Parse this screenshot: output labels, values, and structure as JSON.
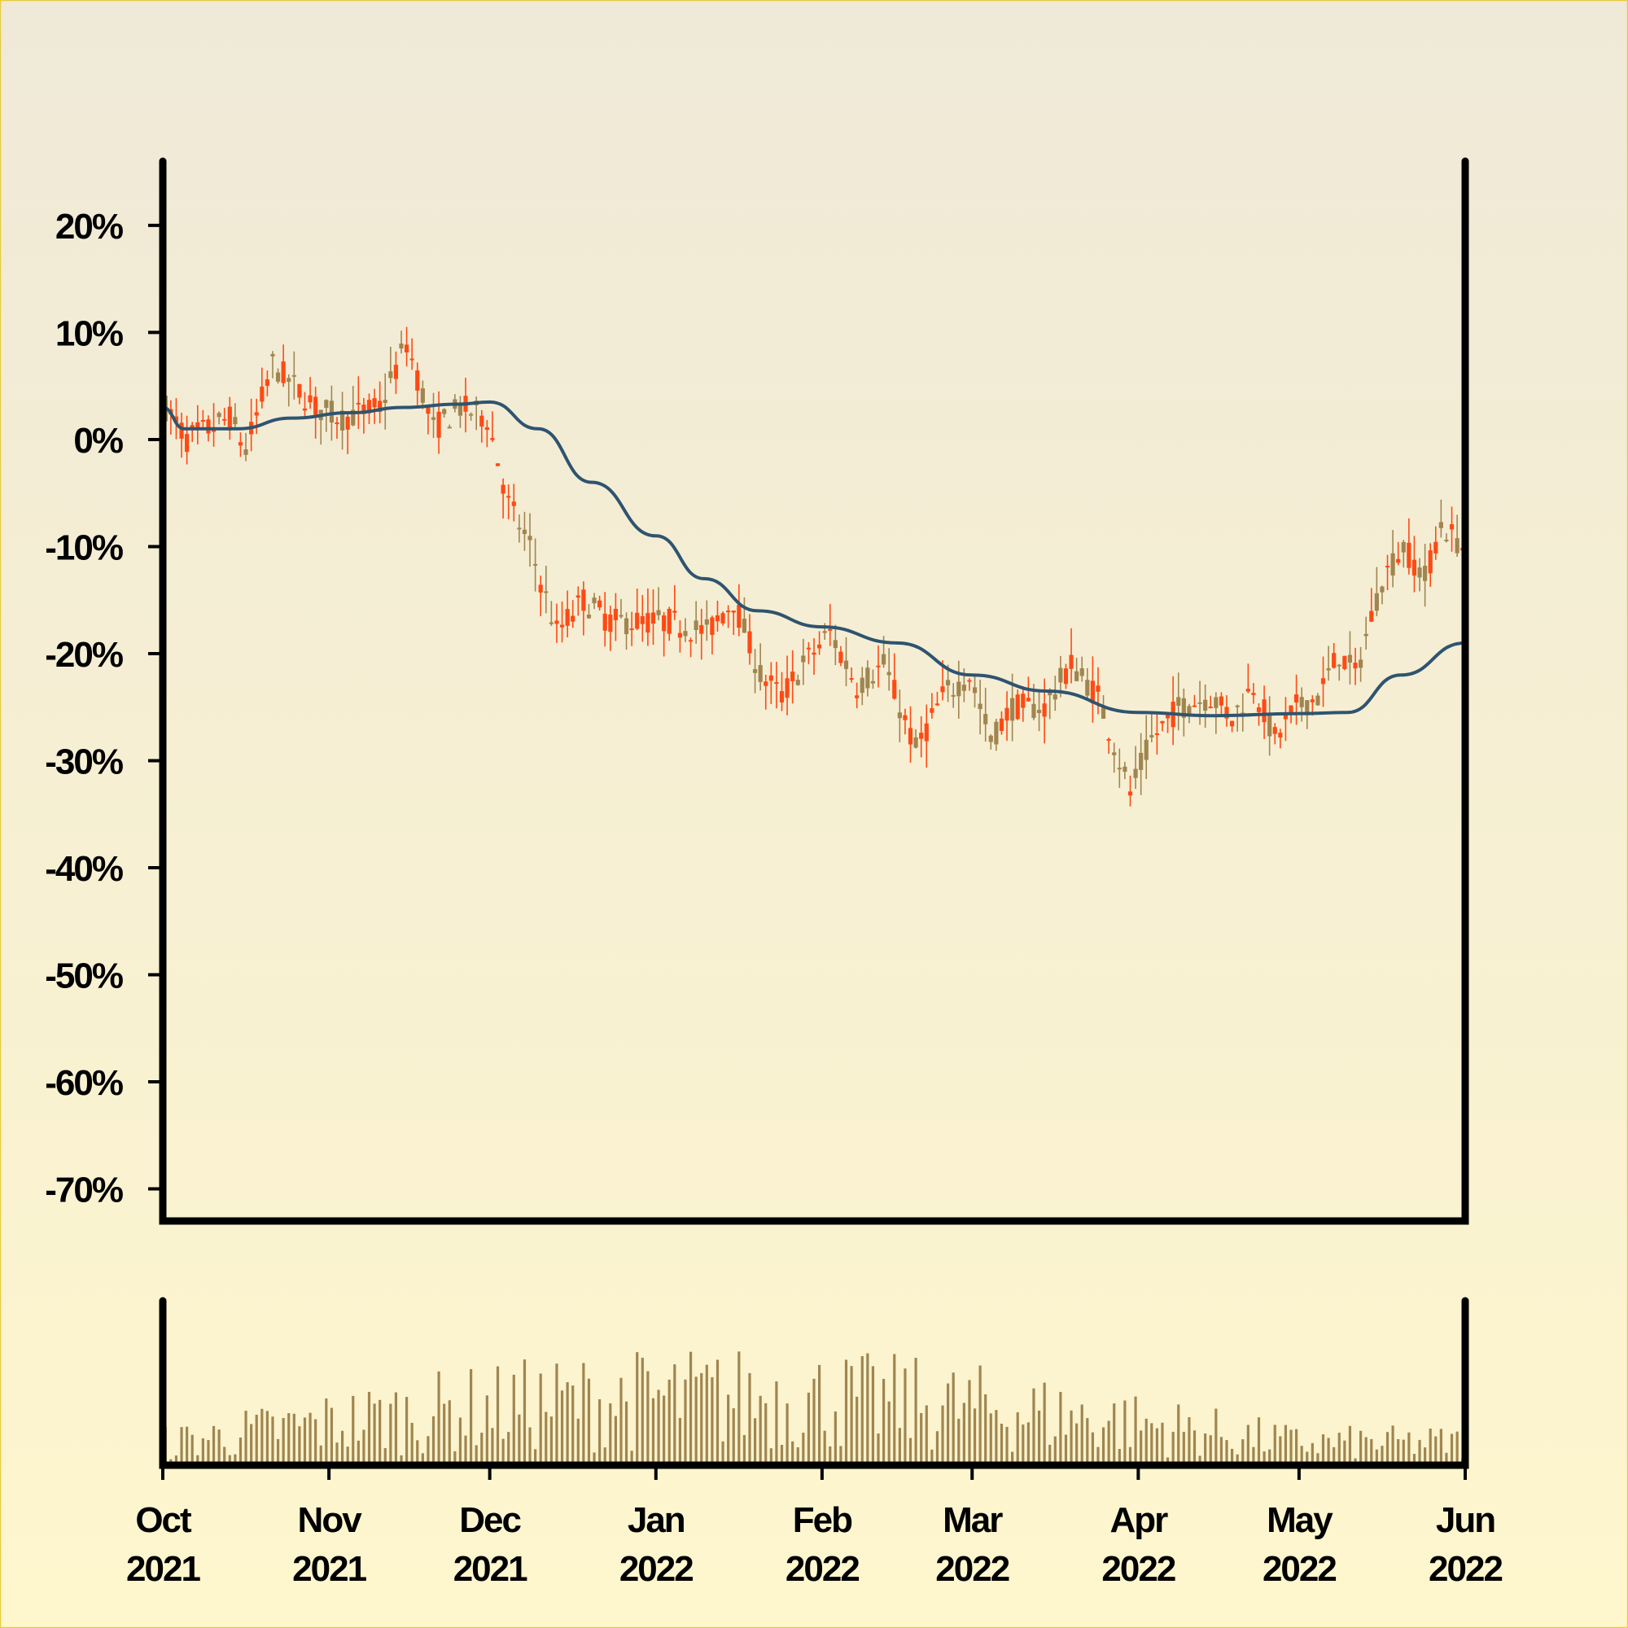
{
  "chart_data": {
    "type": "candlestick",
    "title": "",
    "xlabel": "",
    "ylabel": "",
    "x_range": [
      "2021-10-01",
      "2022-06-01"
    ],
    "y_range": [
      -73,
      26
    ],
    "y_ticks": [
      {
        "value": 20,
        "label": "20%"
      },
      {
        "value": 10,
        "label": "10%"
      },
      {
        "value": 0,
        "label": "0%"
      },
      {
        "value": -10,
        "label": "-10%"
      },
      {
        "value": -20,
        "label": "-20%"
      },
      {
        "value": -30,
        "label": "-30%"
      },
      {
        "value": -40,
        "label": "-40%"
      },
      {
        "value": -50,
        "label": "-50%"
      },
      {
        "value": -60,
        "label": "-60%"
      },
      {
        "value": -70,
        "label": "-70%"
      }
    ],
    "x_ticks": [
      {
        "date": "2021-10-01",
        "month": "Oct",
        "year": "2021"
      },
      {
        "date": "2021-11-01",
        "month": "Nov",
        "year": "2021"
      },
      {
        "date": "2021-12-01",
        "month": "Dec",
        "year": "2021"
      },
      {
        "date": "2022-01-01",
        "month": "Jan",
        "year": "2022"
      },
      {
        "date": "2022-02-01",
        "month": "Feb",
        "year": "2022"
      },
      {
        "date": "2022-03-01",
        "month": "Mar",
        "year": "2022"
      },
      {
        "date": "2022-04-01",
        "month": "Apr",
        "year": "2022"
      },
      {
        "date": "2022-05-01",
        "month": "May",
        "year": "2022"
      },
      {
        "date": "2022-06-01",
        "month": "Jun",
        "year": "2022"
      }
    ],
    "close_path": [
      {
        "date": "2021-10-01",
        "value": 3
      },
      {
        "date": "2021-10-05",
        "value": 0
      },
      {
        "date": "2021-10-09",
        "value": 1
      },
      {
        "date": "2021-10-13",
        "value": 2
      },
      {
        "date": "2021-10-16",
        "value": -1
      },
      {
        "date": "2021-10-21",
        "value": 7
      },
      {
        "date": "2021-10-25",
        "value": 5
      },
      {
        "date": "2021-10-29",
        "value": 3
      },
      {
        "date": "2021-11-03",
        "value": 2
      },
      {
        "date": "2021-11-10",
        "value": 3
      },
      {
        "date": "2021-11-15",
        "value": 9
      },
      {
        "date": "2021-11-20",
        "value": 1
      },
      {
        "date": "2021-11-25",
        "value": 3
      },
      {
        "date": "2021-11-30",
        "value": 2
      },
      {
        "date": "2021-12-04",
        "value": -6
      },
      {
        "date": "2021-12-08",
        "value": -10
      },
      {
        "date": "2021-12-13",
        "value": -18
      },
      {
        "date": "2021-12-18",
        "value": -15
      },
      {
        "date": "2021-12-23",
        "value": -17
      },
      {
        "date": "2022-01-03",
        "value": -17
      },
      {
        "date": "2022-01-10",
        "value": -18
      },
      {
        "date": "2022-01-15",
        "value": -15
      },
      {
        "date": "2022-01-20",
        "value": -22
      },
      {
        "date": "2022-01-24",
        "value": -24
      },
      {
        "date": "2022-01-28",
        "value": -21
      },
      {
        "date": "2022-02-02",
        "value": -18
      },
      {
        "date": "2022-02-07",
        "value": -23
      },
      {
        "date": "2022-02-12",
        "value": -21
      },
      {
        "date": "2022-02-18",
        "value": -29
      },
      {
        "date": "2022-02-23",
        "value": -24
      },
      {
        "date": "2022-02-28",
        "value": -22
      },
      {
        "date": "2022-03-04",
        "value": -28
      },
      {
        "date": "2022-03-08",
        "value": -25
      },
      {
        "date": "2022-03-14",
        "value": -25
      },
      {
        "date": "2022-03-19",
        "value": -21
      },
      {
        "date": "2022-03-24",
        "value": -24
      },
      {
        "date": "2022-03-30",
        "value": -33
      },
      {
        "date": "2022-04-03",
        "value": -28
      },
      {
        "date": "2022-04-08",
        "value": -25
      },
      {
        "date": "2022-04-14",
        "value": -24
      },
      {
        "date": "2022-04-18",
        "value": -26
      },
      {
        "date": "2022-04-22",
        "value": -23
      },
      {
        "date": "2022-04-26",
        "value": -28
      },
      {
        "date": "2022-04-30",
        "value": -25
      },
      {
        "date": "2022-05-04",
        "value": -24
      },
      {
        "date": "2022-05-08",
        "value": -20
      },
      {
        "date": "2022-05-11",
        "value": -22
      },
      {
        "date": "2022-05-16",
        "value": -13
      },
      {
        "date": "2022-05-20",
        "value": -10
      },
      {
        "date": "2022-05-24",
        "value": -13
      },
      {
        "date": "2022-05-27",
        "value": -8
      },
      {
        "date": "2022-05-31",
        "value": -10
      }
    ],
    "moving_average": [
      {
        "date": "2021-10-01",
        "value": 3
      },
      {
        "date": "2021-10-05",
        "value": 1
      },
      {
        "date": "2021-10-15",
        "value": 1
      },
      {
        "date": "2021-10-25",
        "value": 2
      },
      {
        "date": "2021-11-05",
        "value": 2.5
      },
      {
        "date": "2021-11-15",
        "value": 3
      },
      {
        "date": "2021-11-25",
        "value": 3.3
      },
      {
        "date": "2021-12-01",
        "value": 3.5
      },
      {
        "date": "2021-12-10",
        "value": 1
      },
      {
        "date": "2021-12-20",
        "value": -4
      },
      {
        "date": "2022-01-01",
        "value": -9
      },
      {
        "date": "2022-01-10",
        "value": -13
      },
      {
        "date": "2022-01-20",
        "value": -16
      },
      {
        "date": "2022-02-01",
        "value": -17.5
      },
      {
        "date": "2022-02-15",
        "value": -19
      },
      {
        "date": "2022-03-01",
        "value": -22
      },
      {
        "date": "2022-03-15",
        "value": -23.5
      },
      {
        "date": "2022-04-01",
        "value": -25.5
      },
      {
        "date": "2022-04-15",
        "value": -25.8
      },
      {
        "date": "2022-05-01",
        "value": -25.6
      },
      {
        "date": "2022-05-10",
        "value": -25.5
      },
      {
        "date": "2022-05-20",
        "value": -22
      },
      {
        "date": "2022-06-01",
        "value": -19
      }
    ],
    "volume_range": [
      0,
      100
    ],
    "colors": {
      "candle_up": "#a08550",
      "candle_down": "#ff4a14",
      "moving_average": "#2e5470",
      "volume": "#a08550",
      "axes": "#000000",
      "background_top": "#efe9d8",
      "background_bottom": "#fef6cd",
      "border": "#e8cc3f"
    },
    "grid": false,
    "legend": "none"
  }
}
